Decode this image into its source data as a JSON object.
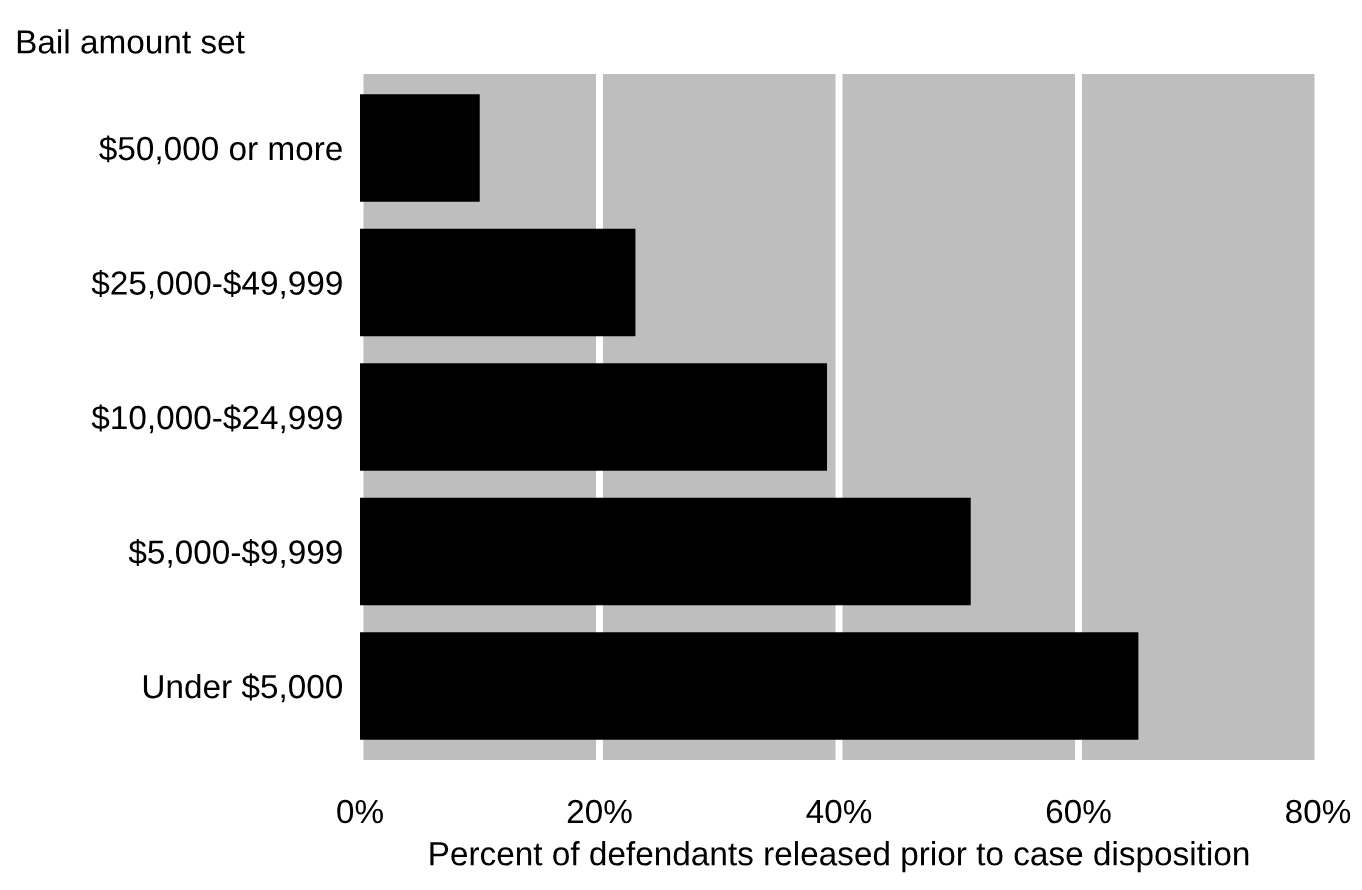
{
  "chart_data": {
    "type": "bar",
    "orientation": "horizontal",
    "ylabel": "Bail amount set",
    "xlabel": "Percent of defendants released prior to case disposition",
    "categories": [
      "$50,000 or more",
      "$25,000-$49,999",
      "$10,000-$24,999",
      "$5,000-$9,999",
      "Under $5,000"
    ],
    "values": [
      10,
      23,
      39,
      51,
      65
    ],
    "color": "#000000",
    "xlim": [
      0,
      80
    ],
    "xticks": [
      {
        "value": 0,
        "label": "0%"
      },
      {
        "value": 20,
        "label": "20%"
      },
      {
        "value": 40,
        "label": "40%"
      },
      {
        "value": 60,
        "label": "60%"
      },
      {
        "value": 80,
        "label": "80%"
      }
    ],
    "grid": "x"
  }
}
